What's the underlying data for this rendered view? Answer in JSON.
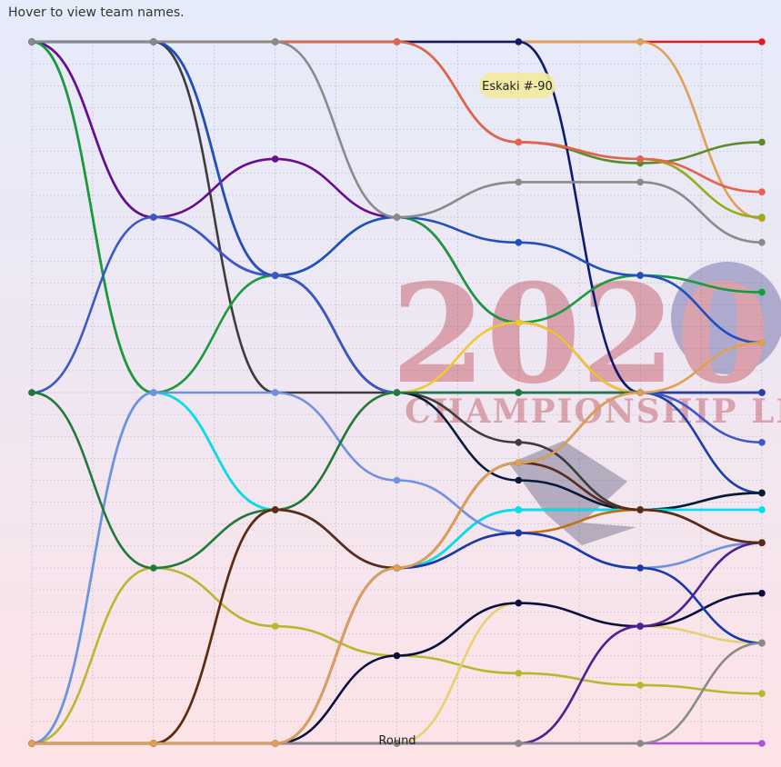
{
  "hint": "Hover to view team names.",
  "tooltip": "Eskaki #-90",
  "watermark": {
    "year": "2020",
    "caption": "CHAMPIONSHIP LEAGUE"
  },
  "chart_data": {
    "type": "line",
    "xlabel": "Round",
    "x": [
      1,
      2,
      3,
      4,
      5,
      6,
      7
    ],
    "ylim": [
      0,
      1
    ],
    "series": [
      {
        "color": "#e31a1c",
        "values": [
          1.0,
          1.0,
          1.0,
          1.0,
          1.0,
          1.0,
          1.0
        ]
      },
      {
        "color": "#e0a050",
        "values": [
          1.0,
          1.0,
          1.0,
          1.0,
          1.0,
          1.0,
          0.748
        ]
      },
      {
        "color": "#5b8c2a",
        "values": [
          1.0,
          1.0,
          1.0,
          1.0,
          0.857,
          0.827,
          0.857
        ]
      },
      {
        "color": "#0d1b6e",
        "values": [
          1.0,
          1.0,
          1.0,
          1.0,
          1.0,
          0.5,
          0.5
        ]
      },
      {
        "color": "#1a3fa8",
        "values": [
          1.0,
          0.75,
          0.667,
          0.5,
          0.5,
          0.5,
          0.357
        ]
      },
      {
        "color": "#3d3d3d",
        "values": [
          1.0,
          1.0,
          0.5,
          0.5,
          0.429,
          0.333,
          0.286
        ]
      },
      {
        "color": "#9aaa1a",
        "values": [
          1.0,
          1.0,
          1.0,
          1.0,
          0.857,
          0.833,
          0.75
        ]
      },
      {
        "color": "#e86050",
        "values": [
          1.0,
          1.0,
          1.0,
          1.0,
          0.857,
          0.833,
          0.786
        ]
      },
      {
        "color": "#1a8a3a",
        "values": [
          1.0,
          0.5,
          0.333,
          0.25,
          0.333,
          0.333,
          0.357
        ]
      },
      {
        "color": "#6a0c8e",
        "values": [
          1.0,
          0.75,
          0.833,
          0.75,
          0.6,
          0.5,
          0.5
        ]
      },
      {
        "color": "#0a1a3a",
        "values": [
          1.0,
          1.0,
          0.667,
          0.5,
          0.375,
          0.333,
          0.357
        ]
      },
      {
        "color": "#1a9a3a",
        "values": [
          1.0,
          0.5,
          0.667,
          0.75,
          0.6,
          0.667,
          0.643
        ]
      },
      {
        "color": "#2050c0",
        "values": [
          1.0,
          1.0,
          0.667,
          0.75,
          0.714,
          0.667,
          0.571
        ]
      },
      {
        "color": "#8a8a8a",
        "values": [
          1.0,
          1.0,
          1.0,
          0.75,
          0.8,
          0.8,
          0.714
        ]
      },
      {
        "color": "#00e0f0",
        "values": [
          0.0,
          0.5,
          0.333,
          0.25,
          0.333,
          0.333,
          0.333
        ]
      },
      {
        "color": "#3a58c8",
        "values": [
          0.5,
          0.75,
          0.667,
          0.5,
          0.5,
          0.5,
          0.429
        ]
      },
      {
        "color": "#f0c830",
        "values": [
          0.0,
          0.0,
          0.333,
          0.5,
          0.6,
          0.5,
          0.5
        ]
      },
      {
        "color": "#a855d8",
        "values": [
          0.0,
          0.0,
          0.0,
          0.0,
          0.0,
          0.0,
          0.0
        ]
      },
      {
        "color": "#b8b830",
        "values": [
          0.0,
          0.25,
          0.167,
          0.125,
          0.1,
          0.083,
          0.071
        ]
      },
      {
        "color": "#e8d070",
        "values": [
          0.0,
          0.0,
          0.0,
          0.0,
          0.2,
          0.167,
          0.143
        ]
      },
      {
        "color": "#7090e0",
        "values": [
          0.0,
          0.5,
          0.5,
          0.375,
          0.3,
          0.25,
          0.286
        ]
      },
      {
        "color": "#0a0f40",
        "values": [
          0.0,
          0.0,
          0.0,
          0.125,
          0.2,
          0.167,
          0.214
        ]
      },
      {
        "color": "#1e7a3a",
        "values": [
          0.5,
          0.25,
          0.333,
          0.5,
          0.5,
          0.5,
          0.5
        ]
      },
      {
        "color": "#c07010",
        "values": [
          0.0,
          0.0,
          0.333,
          0.25,
          0.3,
          0.333,
          0.286
        ]
      },
      {
        "color": "#502090",
        "values": [
          0.0,
          0.0,
          0.0,
          0.0,
          0.0,
          0.167,
          0.286
        ]
      },
      {
        "color": "#1838b0",
        "values": [
          0.0,
          0.0,
          0.0,
          0.25,
          0.3,
          0.25,
          0.143
        ]
      },
      {
        "color": "#8a8a8a",
        "values": [
          0.0,
          0.0,
          0.0,
          0.0,
          0.0,
          0.0,
          0.143
        ]
      },
      {
        "color": "#283cb8",
        "values": [
          0.0,
          0.0,
          0.0,
          0.25,
          0.4,
          0.5,
          0.5
        ]
      },
      {
        "color": "#5a2a1a",
        "values": [
          0.0,
          0.0,
          0.333,
          0.25,
          0.4,
          0.333,
          0.286
        ]
      },
      {
        "color": "#e0a050",
        "values": [
          0.0,
          0.0,
          0.0,
          0.25,
          0.4,
          0.5,
          0.571
        ]
      }
    ]
  }
}
